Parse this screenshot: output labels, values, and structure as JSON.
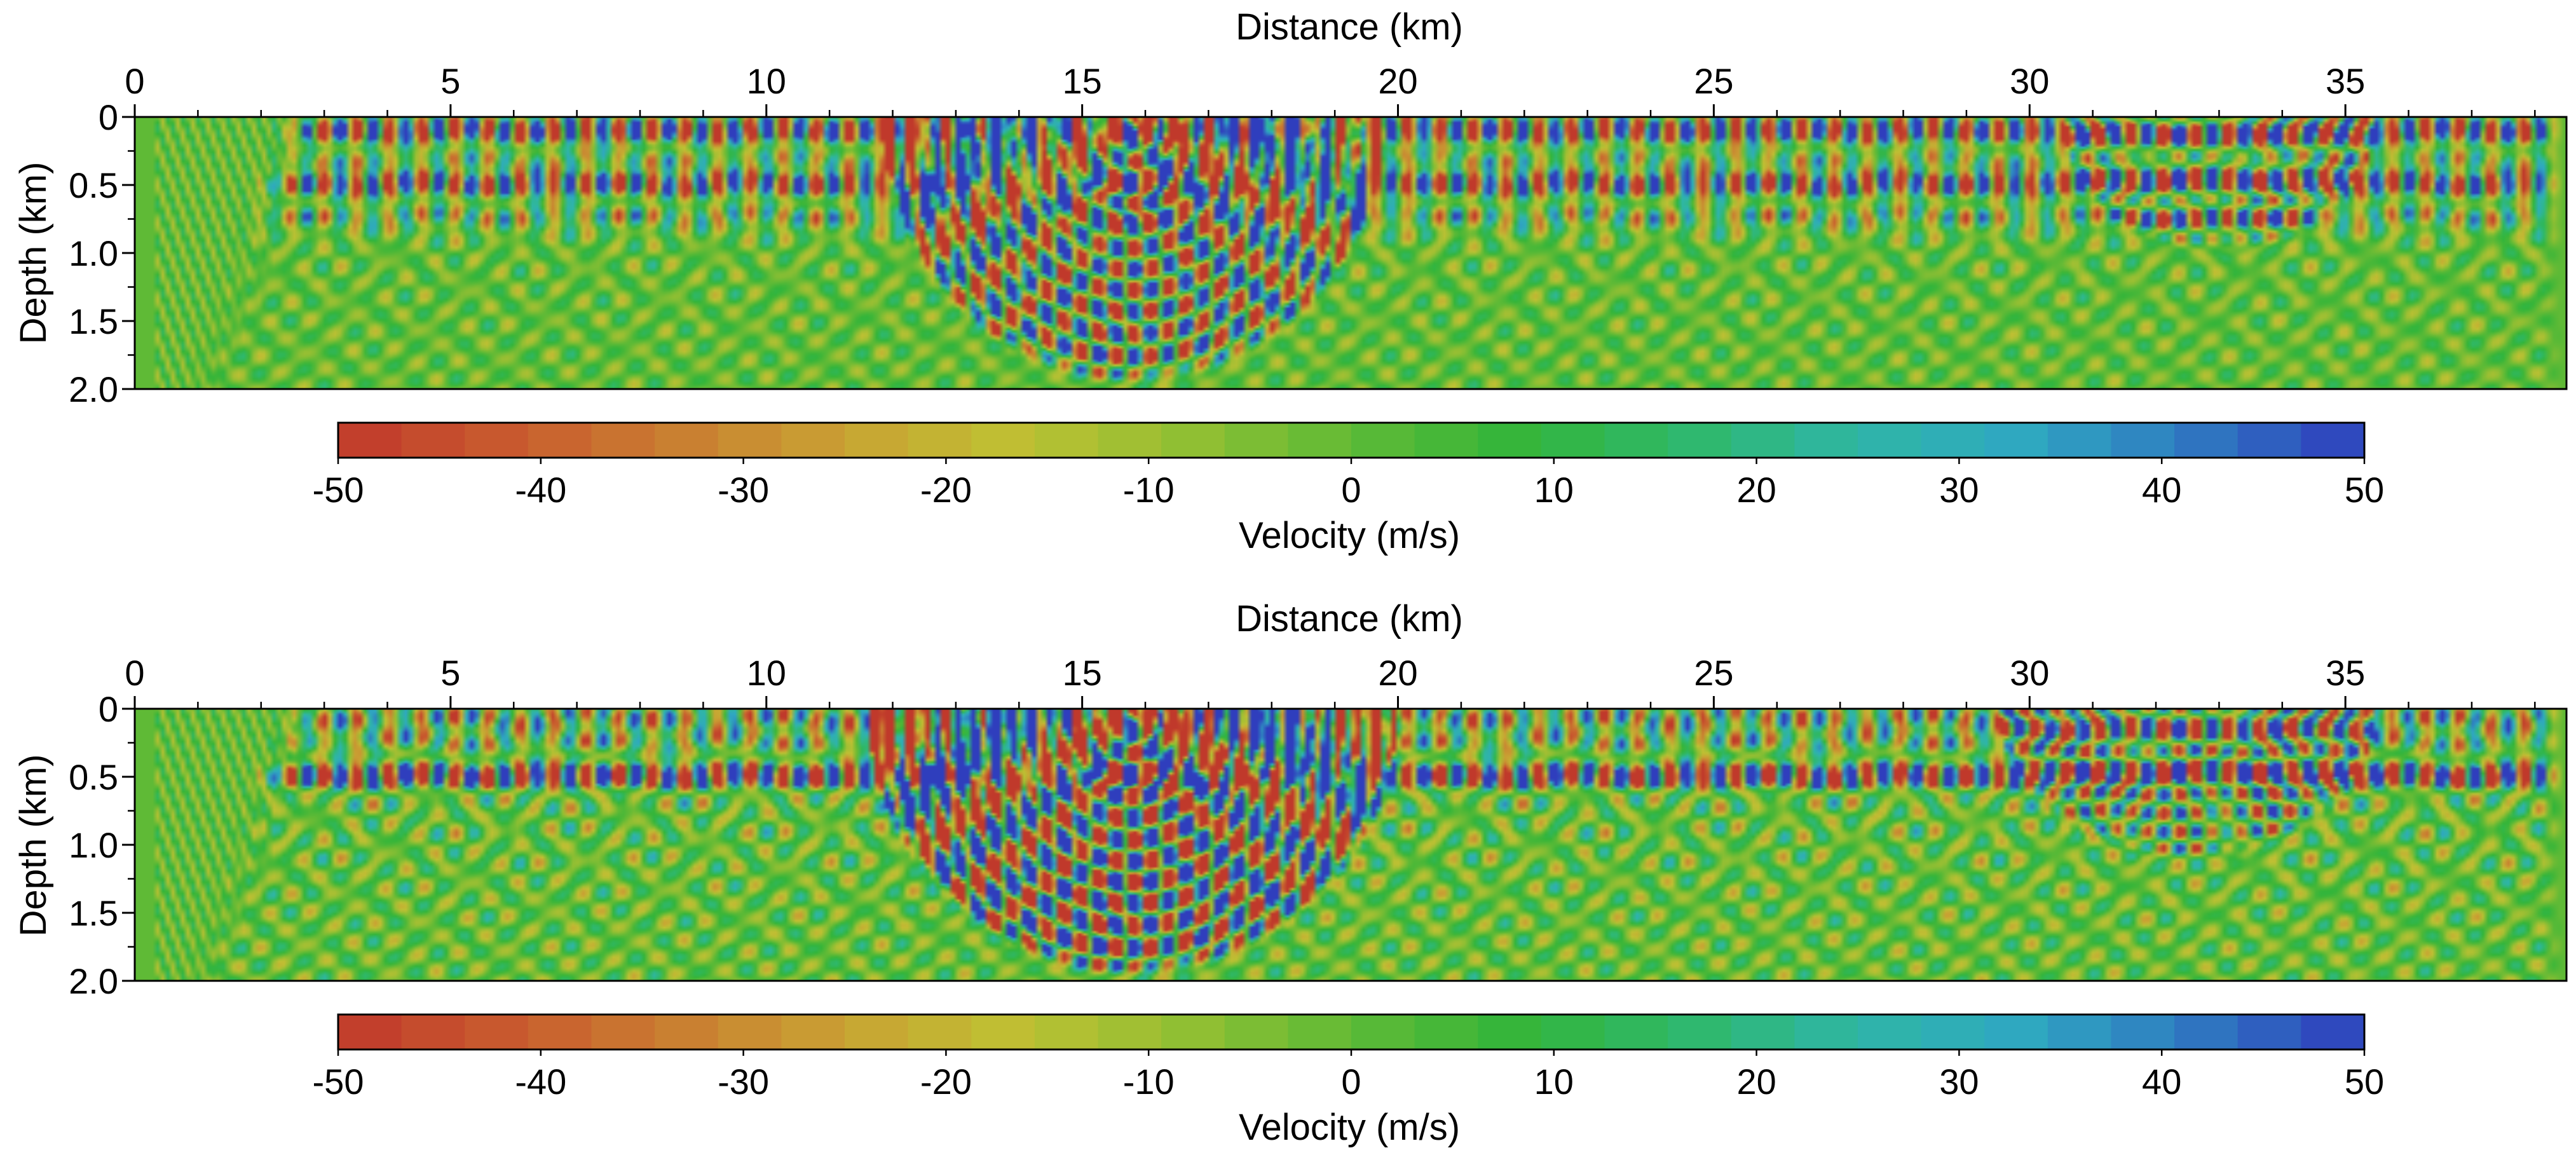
{
  "chart_data": [
    {
      "type": "heatmap",
      "title": "",
      "xlabel": "Distance (km)",
      "ylabel": "Depth (km)",
      "xlim": [
        0,
        38.5
      ],
      "ylim": [
        2.0,
        0
      ],
      "x_ticks": [
        0,
        5,
        10,
        15,
        20,
        25,
        30,
        35
      ],
      "y_ticks": [
        0,
        0.5,
        1.0,
        1.5,
        2.0
      ],
      "x_tick_labels": [
        "0",
        "5",
        "10",
        "15",
        "20",
        "25",
        "30",
        "35"
      ],
      "y_tick_labels": [
        "0",
        "0.5",
        "1.0",
        "1.5",
        "2.0"
      ],
      "x_minor_step": 1,
      "colorbar": {
        "label": "Velocity (m/s)",
        "min": -50,
        "max": 50,
        "levels": 32,
        "ticks": [
          -50,
          -40,
          -30,
          -20,
          -10,
          0,
          10,
          20,
          30,
          40,
          50
        ],
        "tick_labels": [
          "-50",
          "-40",
          "-30",
          "-20",
          "-10",
          "0",
          "10",
          "20",
          "30",
          "40",
          "50"
        ],
        "colors": [
          "#c0392b",
          "#c95a2e",
          "#c97e31",
          "#c9a233",
          "#bfc033",
          "#93bf33",
          "#5fba36",
          "#33b53a",
          "#2fb86b",
          "#2fb6a6",
          "#2fa7c2",
          "#2f78c0",
          "#2f3ebd"
        ]
      },
      "wavefield": {
        "description_id": "checkerboard-perturbation-model-1",
        "near_surface_layers_km": [
          0.12,
          0.3,
          0.5,
          0.72
        ],
        "basin": {
          "center_km": 15.8,
          "half_width_km": 4.0,
          "depth_km": 1.95
        },
        "right_basin": {
          "center_km": 33.0,
          "half_width_km": 2.5,
          "depth_km": 1.0
        },
        "onset_km": 3.0,
        "amplitude_scale": 42
      }
    },
    {
      "type": "heatmap",
      "title": "",
      "xlabel": "Distance (km)",
      "ylabel": "Depth (km)",
      "xlim": [
        0,
        38.5
      ],
      "ylim": [
        2.0,
        0
      ],
      "x_ticks": [
        0,
        5,
        10,
        15,
        20,
        25,
        30,
        35
      ],
      "y_ticks": [
        0,
        0.5,
        1.0,
        1.5,
        2.0
      ],
      "x_tick_labels": [
        "0",
        "5",
        "10",
        "15",
        "20",
        "25",
        "30",
        "35"
      ],
      "y_tick_labels": [
        "0",
        "0.5",
        "1.0",
        "1.5",
        "2.0"
      ],
      "x_minor_step": 1,
      "colorbar": {
        "label": "Velocity (m/s)",
        "min": -50,
        "max": 50,
        "levels": 32,
        "ticks": [
          -50,
          -40,
          -30,
          -20,
          -10,
          0,
          10,
          20,
          30,
          40,
          50
        ],
        "tick_labels": [
          "-50",
          "-40",
          "-30",
          "-20",
          "-10",
          "0",
          "10",
          "20",
          "30",
          "40",
          "50"
        ],
        "colors": [
          "#c0392b",
          "#c95a2e",
          "#c97e31",
          "#c9a233",
          "#bfc033",
          "#93bf33",
          "#5fba36",
          "#33b53a",
          "#2fb86b",
          "#2fb6a6",
          "#2fa7c2",
          "#2f78c0",
          "#2f3ebd"
        ]
      },
      "wavefield": {
        "description_id": "checkerboard-perturbation-model-2",
        "near_surface_layers_km": [
          0.25,
          0.5
        ],
        "basin": {
          "center_km": 15.8,
          "half_width_km": 4.2,
          "depth_km": 1.95
        },
        "right_basin": {
          "center_km": 32.5,
          "half_width_km": 3.0,
          "depth_km": 1.1
        },
        "onset_km": 3.0,
        "amplitude_scale": 55
      }
    }
  ]
}
